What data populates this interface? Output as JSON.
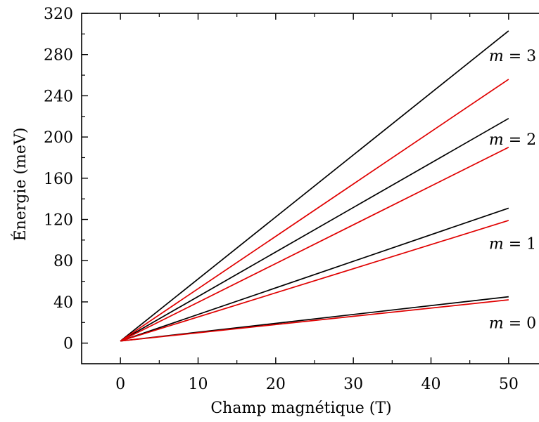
{
  "chart_data": {
    "type": "line",
    "title": "",
    "xlabel": "Champ magnétique (T)",
    "ylabel": "Énergie (meV)",
    "xlim": [
      -5,
      55
    ],
    "ylim": [
      -20,
      320
    ],
    "xticks": [
      0,
      10,
      20,
      30,
      40,
      50
    ],
    "yticks": [
      0,
      40,
      80,
      120,
      160,
      200,
      240,
      280,
      320
    ],
    "grid": false,
    "legend": "none",
    "colors": {
      "black": "#000000",
      "red": "#e00000"
    },
    "series": [
      {
        "color": "#000000",
        "x": [
          0,
          50
        ],
        "y": [
          2,
          45
        ]
      },
      {
        "color": "#e00000",
        "x": [
          0,
          50
        ],
        "y": [
          2,
          42
        ]
      },
      {
        "color": "#000000",
        "x": [
          0,
          50
        ],
        "y": [
          2,
          131
        ]
      },
      {
        "color": "#e00000",
        "x": [
          0,
          50
        ],
        "y": [
          2,
          119
        ]
      },
      {
        "color": "#000000",
        "x": [
          0,
          50
        ],
        "y": [
          2,
          218
        ]
      },
      {
        "color": "#e00000",
        "x": [
          0,
          50
        ],
        "y": [
          2,
          190
        ]
      },
      {
        "color": "#000000",
        "x": [
          0,
          50
        ],
        "y": [
          2,
          303
        ]
      },
      {
        "color": "#e00000",
        "x": [
          0,
          50
        ],
        "y": [
          2,
          256
        ]
      }
    ],
    "annotations": [
      {
        "var": "m",
        "text": " = 3",
        "x": 50,
        "y": 279
      },
      {
        "var": "m",
        "text": " = 2",
        "x": 50,
        "y": 198
      },
      {
        "var": "m",
        "text": " = 1",
        "x": 50,
        "y": 97
      },
      {
        "var": "m",
        "text": " = 0",
        "x": 50,
        "y": 20
      }
    ]
  }
}
